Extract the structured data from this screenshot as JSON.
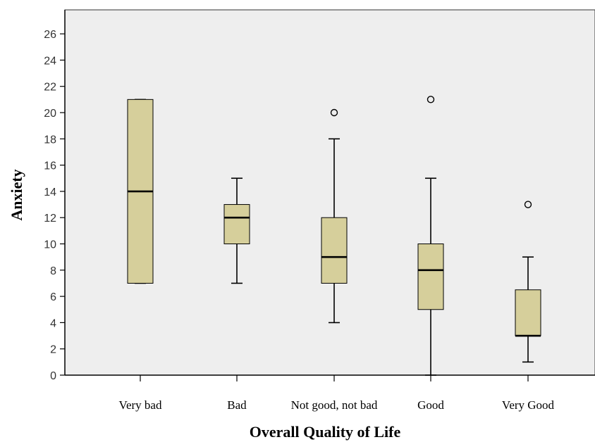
{
  "chart_data": {
    "type": "boxplot",
    "xlabel": "Overall Quality of Life",
    "ylabel": "Anxiety",
    "ylim": [
      0,
      26
    ],
    "yticks": [
      0,
      2,
      4,
      6,
      8,
      10,
      12,
      14,
      16,
      18,
      20,
      22,
      24,
      26
    ],
    "categories": [
      "Very bad",
      "Bad",
      "Not good, not bad",
      "Good",
      "Very Good"
    ],
    "boxes": [
      {
        "category": "Very bad",
        "whisker_low": 7,
        "q1": 7,
        "median": 14,
        "q3": 21,
        "whisker_high": 21,
        "outliers": []
      },
      {
        "category": "Bad",
        "whisker_low": 7,
        "q1": 10,
        "median": 12,
        "q3": 13,
        "whisker_high": 15,
        "outliers": []
      },
      {
        "category": "Not good, not bad",
        "whisker_low": 4,
        "q1": 7,
        "median": 9,
        "q3": 12,
        "whisker_high": 18,
        "outliers": [
          20
        ]
      },
      {
        "category": "Good",
        "whisker_low": 0,
        "q1": 5,
        "median": 8,
        "q3": 10,
        "whisker_high": 15,
        "outliers": [
          21
        ]
      },
      {
        "category": "Very Good",
        "whisker_low": 1,
        "q1": 3,
        "median": 3,
        "q3": 6.5,
        "whisker_high": 9,
        "outliers": [
          13
        ]
      }
    ],
    "colors": {
      "box_fill": "#d6cf9b",
      "plot_bg": "#eeeeee",
      "stroke": "#000000"
    }
  }
}
